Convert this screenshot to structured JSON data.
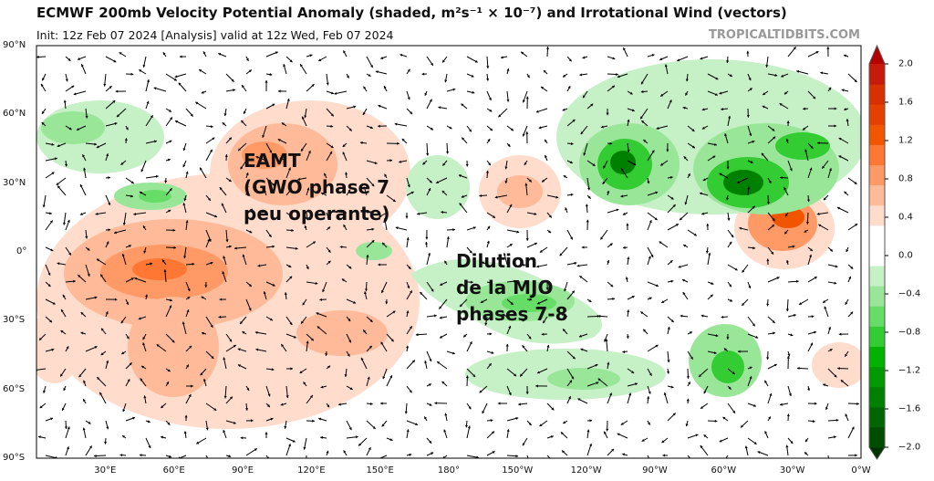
{
  "header": {
    "title": "ECMWF 200mb Velocity Potential Anomaly (shaded, m²s⁻¹ × 10⁻⁷) and Irrotational Wind (vectors)",
    "subtitle": "Init: 12z Feb 07 2024   [Analysis]   valid at 12z Wed, Feb 07 2024",
    "brand": "TROPICALTIDBITS.COM"
  },
  "map": {
    "lat_labels": [
      "90°N",
      "60°N",
      "30°N",
      "0°",
      "30°S",
      "60°S",
      "90°S"
    ],
    "lon_labels": [
      "30°E",
      "60°E",
      "90°E",
      "120°E",
      "150°E",
      "180°",
      "150°W",
      "120°W",
      "90°W",
      "60°W",
      "30°W",
      "0°W"
    ],
    "annotations": {
      "eamt": [
        "EAMT",
        "(GWO phase 7",
        "peu operante)"
      ],
      "mjo": [
        "Dilution",
        "de la MJO",
        "phases 7-8"
      ]
    }
  },
  "colorbar": {
    "tick_labels": [
      "2.0",
      "1.6",
      "1.2",
      "0.8",
      "0.4",
      "0.0",
      "−0.4",
      "−0.8",
      "−1.2",
      "−1.6",
      "−2.0"
    ],
    "colors": [
      "#003300",
      "#004d00",
      "#006600",
      "#008000",
      "#009900",
      "#00b300",
      "#33cc33",
      "#66dd66",
      "#99e699",
      "#c6f0c6",
      "#ffffff",
      "#ffffff",
      "#ffdccc",
      "#ffbb99",
      "#ff9966",
      "#ff7733",
      "#f25500",
      "#e64000",
      "#d93000",
      "#c81a0a",
      "#b50000"
    ]
  }
}
